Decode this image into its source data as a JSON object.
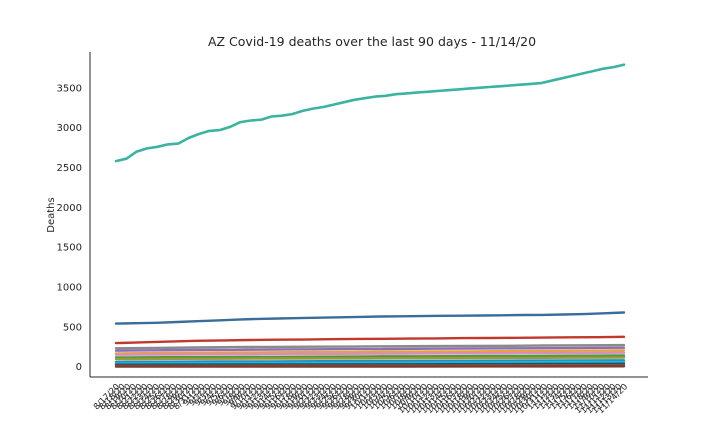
{
  "chart_data": {
    "type": "line",
    "title": "AZ Covid-19 deaths over the last 90 days - 11/14/20",
    "xlabel": "",
    "ylabel": "Deaths",
    "ylim": [
      -130,
      3950
    ],
    "yticks": [
      0,
      500,
      1000,
      1500,
      2000,
      2500,
      3000,
      3500
    ],
    "x_start": "2020-08-17",
    "x_end": "2020-11-14",
    "x_tick_format": "M/D/YY",
    "x_tick_rotation": 45,
    "grid": false,
    "legend": "none",
    "series": [
      {
        "color": "#3bb3a0",
        "values": [
          2580,
          2610,
          2700,
          2740,
          2760,
          2790,
          2800,
          2870,
          2920,
          2960,
          2970,
          3010,
          3070,
          3090,
          3100,
          3140,
          3150,
          3170,
          3210,
          3240,
          3260,
          3290,
          3320,
          3350,
          3370,
          3390,
          3400,
          3420,
          3430,
          3440,
          3450,
          3460,
          3470,
          3480,
          3490,
          3500,
          3510,
          3520,
          3530,
          3540,
          3550,
          3560,
          3590,
          3620,
          3650,
          3680,
          3710,
          3740,
          3760,
          3790
        ]
      },
      {
        "color": "#3a6d9a",
        "values": [
          540,
          545,
          550,
          560,
          570,
          580,
          590,
          600,
          605,
          610,
          615,
          620,
          625,
          630,
          632,
          635,
          638,
          640,
          642,
          645,
          648,
          650,
          655,
          660,
          670,
          680
        ]
      },
      {
        "color": "#c0392b",
        "values": [
          295,
          305,
          315,
          325,
          330,
          335,
          338,
          340,
          345,
          348,
          350,
          352,
          355,
          358,
          360,
          362,
          365,
          368,
          370,
          375
        ]
      },
      {
        "color": "#8a8a8a",
        "values": [
          230,
          235,
          240,
          245,
          248,
          250,
          252,
          255,
          258,
          260,
          262,
          265,
          268,
          270
        ]
      },
      {
        "color": "#8e6fb5",
        "values": [
          200,
          205,
          210,
          212,
          215,
          218,
          220,
          222,
          225,
          228,
          230,
          232,
          235,
          238
        ]
      },
      {
        "color": "#e6a33a",
        "values": [
          165,
          170,
          175,
          178,
          180,
          182,
          185,
          188,
          190,
          192,
          195,
          198,
          200,
          205
        ]
      },
      {
        "color": "#d98cc0",
        "values": [
          150,
          152,
          155,
          158,
          160,
          162,
          165,
          168,
          170,
          172,
          175
        ]
      },
      {
        "color": "#4a9a3a",
        "values": [
          115,
          118,
          120,
          122,
          125,
          128,
          130,
          132,
          135,
          138,
          140
        ]
      },
      {
        "color": "#9a9a3a",
        "values": [
          95,
          98,
          100,
          102,
          104,
          106,
          108,
          110,
          112,
          115
        ]
      },
      {
        "color": "#2e86c1",
        "values": [
          60,
          62,
          64,
          66,
          68,
          70,
          72,
          74,
          76,
          78,
          80
        ]
      },
      {
        "color": "#17becf",
        "values": [
          40,
          42,
          44,
          46,
          48,
          50,
          52,
          55,
          58,
          60
        ]
      },
      {
        "color": "#1f4e79",
        "values": [
          25,
          26,
          27,
          28,
          30,
          32,
          34,
          36
        ]
      },
      {
        "color": "#a0522d",
        "values": [
          8,
          9,
          10,
          11,
          12,
          13,
          14,
          15
        ]
      },
      {
        "color": "#7a3b2e",
        "values": [
          0,
          1,
          1,
          2,
          2,
          3,
          3,
          4
        ]
      }
    ]
  }
}
